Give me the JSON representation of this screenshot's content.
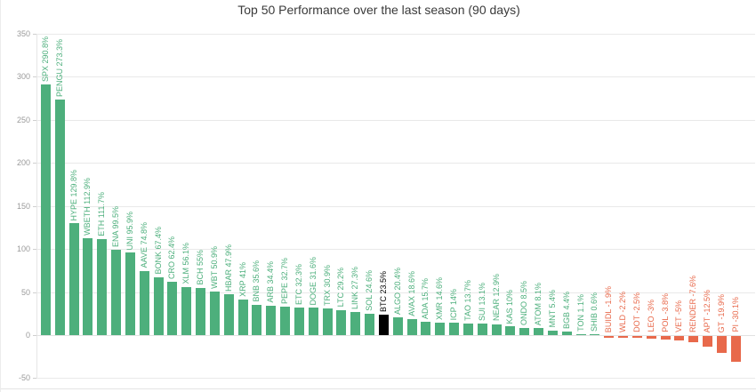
{
  "title": "Top 50 Performance over the last season (90 days)",
  "chart_data": {
    "type": "bar",
    "title": "Top 50 Performance over the last season (90 days)",
    "xlabel": "",
    "ylabel": "",
    "ylim": [
      -50,
      350
    ],
    "yticks": [
      350,
      300,
      250,
      200,
      150,
      100,
      50,
      0,
      -50
    ],
    "grid": true,
    "legend": "none",
    "unit": "%",
    "colors": {
      "positive": "#4daf7c",
      "negative": "#e8694b",
      "highlight": "#000000",
      "axis_text": "#9a9a9a",
      "grid_line": "#e9e9e9",
      "title_text": "#3a3a3a"
    },
    "series": [
      {
        "name": "SPX",
        "value": 290.8,
        "pct": "290.8%"
      },
      {
        "name": "PENGU",
        "value": 273.3,
        "pct": "273.3%"
      },
      {
        "name": "HYPE",
        "value": 129.8,
        "pct": "129.8%"
      },
      {
        "name": "WBETH",
        "value": 112.9,
        "pct": "112.9%"
      },
      {
        "name": "ETH",
        "value": 111.7,
        "pct": "111.7%"
      },
      {
        "name": "ENA",
        "value": 99.5,
        "pct": "99.5%"
      },
      {
        "name": "UNI",
        "value": 95.9,
        "pct": "95.9%"
      },
      {
        "name": "AAVE",
        "value": 74.8,
        "pct": "74.8%"
      },
      {
        "name": "BONK",
        "value": 67.4,
        "pct": "67.4%"
      },
      {
        "name": "CRO",
        "value": 62.4,
        "pct": "62.4%"
      },
      {
        "name": "XLM",
        "value": 56.1,
        "pct": "56.1%"
      },
      {
        "name": "BCH",
        "value": 55,
        "pct": "55%"
      },
      {
        "name": "WBT",
        "value": 50.9,
        "pct": "50.9%"
      },
      {
        "name": "HBAR",
        "value": 47.9,
        "pct": "47.9%"
      },
      {
        "name": "XRP",
        "value": 41,
        "pct": "41%"
      },
      {
        "name": "BNB",
        "value": 35.6,
        "pct": "35.6%"
      },
      {
        "name": "ARB",
        "value": 34.4,
        "pct": "34.4%"
      },
      {
        "name": "PEPE",
        "value": 32.7,
        "pct": "32.7%"
      },
      {
        "name": "ETC",
        "value": 32.3,
        "pct": "32.3%"
      },
      {
        "name": "DOGE",
        "value": 31.6,
        "pct": "31.6%"
      },
      {
        "name": "TRX",
        "value": 30.9,
        "pct": "30.9%"
      },
      {
        "name": "LTC",
        "value": 29.2,
        "pct": "29.2%"
      },
      {
        "name": "LINK",
        "value": 27.3,
        "pct": "27.3%"
      },
      {
        "name": "SOL",
        "value": 24.6,
        "pct": "24.6%"
      },
      {
        "name": "BTC",
        "value": 23.5,
        "pct": "23.5%",
        "highlight": true
      },
      {
        "name": "ALGO",
        "value": 20.4,
        "pct": "20.4%"
      },
      {
        "name": "AVAX",
        "value": 18.6,
        "pct": "18.6%"
      },
      {
        "name": "ADA",
        "value": 15.7,
        "pct": "15.7%"
      },
      {
        "name": "XMR",
        "value": 14.6,
        "pct": "14.6%"
      },
      {
        "name": "ICP",
        "value": 14,
        "pct": "14%"
      },
      {
        "name": "TAO",
        "value": 13.7,
        "pct": "13.7%"
      },
      {
        "name": "SUI",
        "value": 13.1,
        "pct": "13.1%"
      },
      {
        "name": "NEAR",
        "value": 12.9,
        "pct": "12.9%"
      },
      {
        "name": "KAS",
        "value": 10,
        "pct": "10%"
      },
      {
        "name": "ONDO",
        "value": 8.5,
        "pct": "8.5%"
      },
      {
        "name": "ATOM",
        "value": 8.1,
        "pct": "8.1%"
      },
      {
        "name": "MNT",
        "value": 5.4,
        "pct": "5.4%"
      },
      {
        "name": "BGB",
        "value": 4.4,
        "pct": "4.4%"
      },
      {
        "name": "TON",
        "value": 1.1,
        "pct": "1.1%"
      },
      {
        "name": "SHIB",
        "value": 0.6,
        "pct": "0.6%"
      },
      {
        "name": "BUIDL",
        "value": -1.9,
        "pct": "-1.9%"
      },
      {
        "name": "WLD",
        "value": -2.2,
        "pct": "-2.2%"
      },
      {
        "name": "DOT",
        "value": -2.5,
        "pct": "-2.5%"
      },
      {
        "name": "LEO",
        "value": -3,
        "pct": "-3%"
      },
      {
        "name": "POL",
        "value": -3.8,
        "pct": "-3.8%"
      },
      {
        "name": "VET",
        "value": -5,
        "pct": "-5%"
      },
      {
        "name": "RENDER",
        "value": -7.6,
        "pct": "-7.6%"
      },
      {
        "name": "APT",
        "value": -12.5,
        "pct": "-12.5%"
      },
      {
        "name": "GT",
        "value": -19.9,
        "pct": "-19.9%"
      },
      {
        "name": "PI",
        "value": -30.1,
        "pct": "-30.1%"
      }
    ]
  }
}
